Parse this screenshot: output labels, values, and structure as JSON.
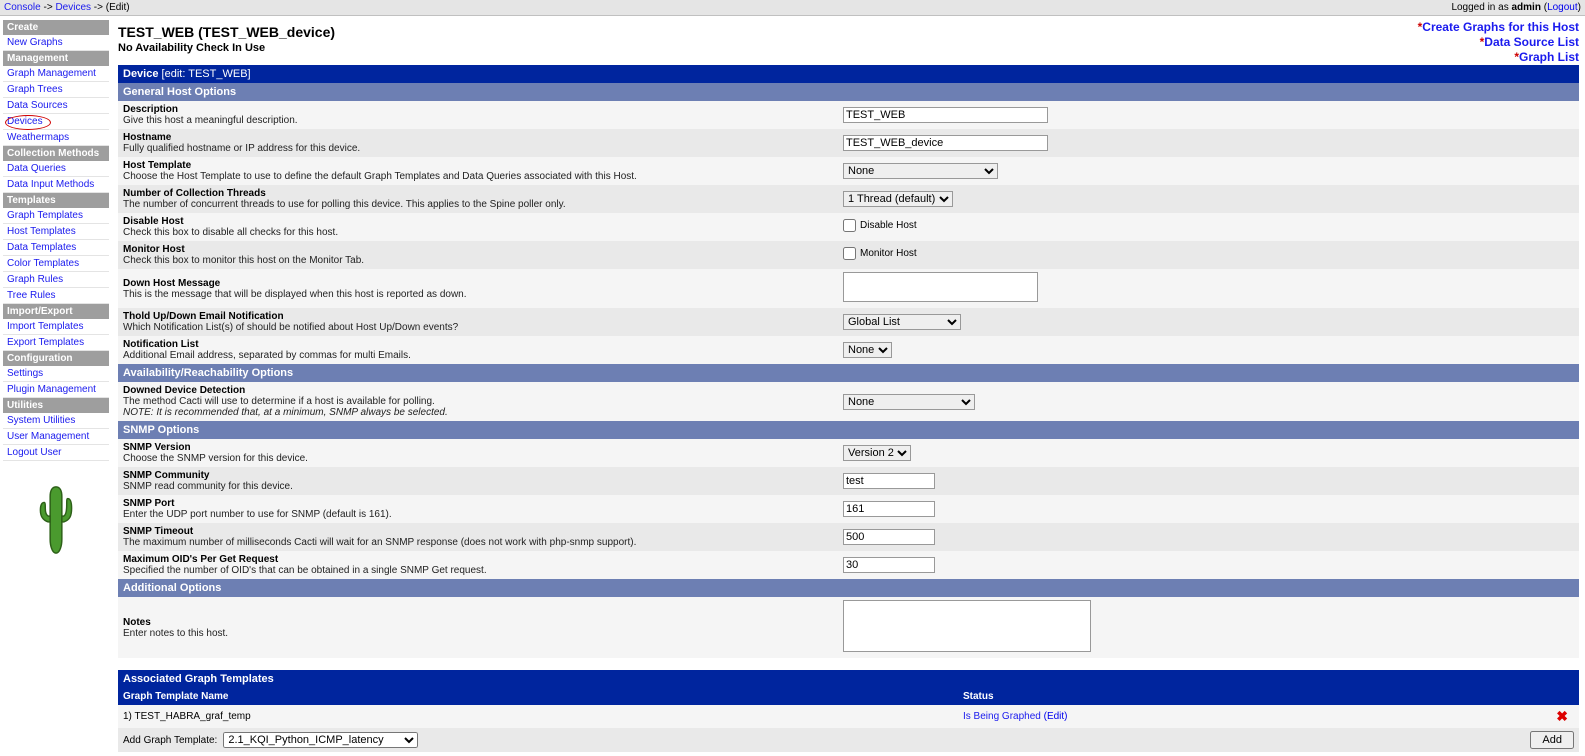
{
  "topbar": {
    "crumb1": "Console",
    "crumb2": "Devices",
    "crumb3": "(Edit)",
    "sep": " -> ",
    "logged_in_prefix": "Logged in as ",
    "user": "admin",
    "logout": "Logout"
  },
  "sidebar": {
    "sections": [
      {
        "title": "Create",
        "items": [
          "New Graphs"
        ]
      },
      {
        "title": "Management",
        "items": [
          "Graph Management",
          "Graph Trees",
          "Data Sources",
          "Devices",
          "Weathermaps"
        ]
      },
      {
        "title": "Collection Methods",
        "items": [
          "Data Queries",
          "Data Input Methods"
        ]
      },
      {
        "title": "Templates",
        "items": [
          "Graph Templates",
          "Host Templates",
          "Data Templates",
          "Color Templates",
          "Graph Rules",
          "Tree Rules"
        ]
      },
      {
        "title": "Import/Export",
        "items": [
          "Import Templates",
          "Export Templates"
        ]
      },
      {
        "title": "Configuration",
        "items": [
          "Settings",
          "Plugin Management"
        ]
      },
      {
        "title": "Utilities",
        "items": [
          "System Utilities",
          "User Management",
          "Logout User"
        ]
      }
    ],
    "circled": "Devices"
  },
  "header": {
    "title": "TEST_WEB (TEST_WEB_device)",
    "subtitle": "No Availability Check In Use",
    "links": {
      "l1": "Create Graphs for this Host",
      "l2": "Data Source List",
      "l3": "Graph List"
    }
  },
  "sections": {
    "device_bar": "Device",
    "device_bar_suffix": " [edit: TEST_WEB]",
    "general": "General Host Options",
    "avail": "Availability/Reachability Options",
    "snmp": "SNMP Options",
    "additional": "Additional Options"
  },
  "fields": {
    "description": {
      "label": "Description",
      "hint": "Give this host a meaningful description.",
      "value": "TEST_WEB"
    },
    "hostname": {
      "label": "Hostname",
      "hint": "Fully qualified hostname or IP address for this device.",
      "value": "TEST_WEB_device"
    },
    "host_template": {
      "label": "Host Template",
      "hint": "Choose the Host Template to use to define the default Graph Templates and Data Queries associated with this Host.",
      "value": "None"
    },
    "threads": {
      "label": "Number of Collection Threads",
      "hint": "The number of concurrent threads to use for polling this device. This applies to the Spine poller only.",
      "value": "1 Thread (default)"
    },
    "disable": {
      "label": "Disable Host",
      "hint": "Check this box to disable all checks for this host.",
      "chk": "Disable Host"
    },
    "monitor": {
      "label": "Monitor Host",
      "hint": "Check this box to monitor this host on the Monitor Tab.",
      "chk": "Monitor Host"
    },
    "down_msg": {
      "label": "Down Host Message",
      "hint": "This is the message that will be displayed when this host is reported as down."
    },
    "thold": {
      "label": "Thold Up/Down Email Notification",
      "hint": "Which Notification List(s) of should be notified about Host Up/Down events?",
      "value": "Global List"
    },
    "notif": {
      "label": "Notification List",
      "hint": "Additional Email address, separated by commas for multi Emails.",
      "value": "None"
    },
    "downed": {
      "label": "Downed Device Detection",
      "hint": "The method Cacti will use to determine if a host is available for polling.",
      "hint2": "NOTE: It is recommended that, at a minimum, SNMP always be selected.",
      "value": "None"
    },
    "snmp_version": {
      "label": "SNMP Version",
      "hint": "Choose the SNMP version for this device.",
      "value": "Version 2"
    },
    "snmp_community": {
      "label": "SNMP Community",
      "hint": "SNMP read community for this device.",
      "value": "test"
    },
    "snmp_port": {
      "label": "SNMP Port",
      "hint": "Enter the UDP port number to use for SNMP (default is 161).",
      "value": "161"
    },
    "snmp_timeout": {
      "label": "SNMP Timeout",
      "hint": "The maximum number of milliseconds Cacti will wait for an SNMP response (does not work with php-snmp support).",
      "value": "500"
    },
    "snmp_oids": {
      "label": "Maximum OID's Per Get Request",
      "hint": "Specified the number of OID's that can be obtained in a single SNMP Get request.",
      "value": "30"
    },
    "notes": {
      "label": "Notes",
      "hint": "Enter notes to this host."
    }
  },
  "assoc": {
    "title": "Associated Graph Templates",
    "col1": "Graph Template Name",
    "col2": "Status",
    "row_num": "1)",
    "row_name": "TEST_HABRA_graf_temp",
    "status_text": "Is Being Graphed",
    "status_link": "(Edit)",
    "add_label": "Add Graph Template:",
    "add_value": "2.1_KQI_Python_ICMP_latency",
    "add_btn": "Add"
  }
}
